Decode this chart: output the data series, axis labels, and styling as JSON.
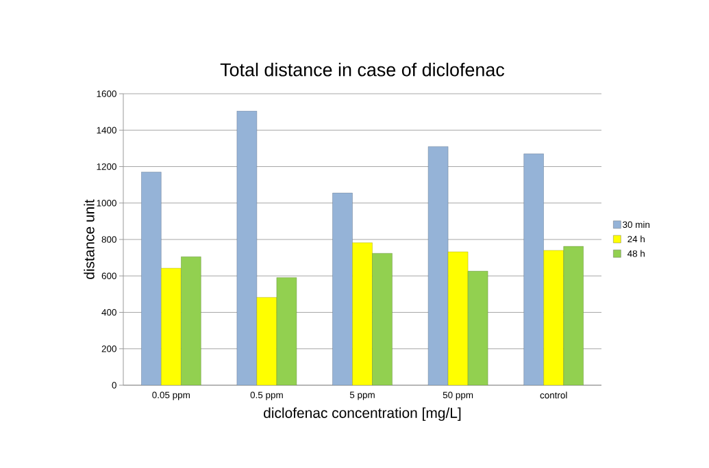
{
  "chart_data": {
    "type": "bar",
    "title": "Total distance in case of diclofenac",
    "xlabel": "diclofenac concentration [mg/L]",
    "ylabel": "distance unit",
    "categories": [
      "0.05 ppm",
      "0.5 ppm",
      "5 ppm",
      "50 ppm",
      "control"
    ],
    "series": [
      {
        "name": "30 min",
        "color": "#95b3d7",
        "values": [
          1170,
          1505,
          1055,
          1310,
          1270
        ]
      },
      {
        "name": "24 h",
        "color": "#ffff00",
        "values": [
          642,
          482,
          782,
          732,
          740
        ]
      },
      {
        "name": "48 h",
        "color": "#92d050",
        "values": [
          705,
          591,
          724,
          626,
          762
        ]
      }
    ],
    "ylim": [
      0,
      1600
    ],
    "yticks": [
      0,
      200,
      400,
      600,
      800,
      1000,
      1200,
      1400,
      1600
    ],
    "grid": "y",
    "legend": "right"
  }
}
